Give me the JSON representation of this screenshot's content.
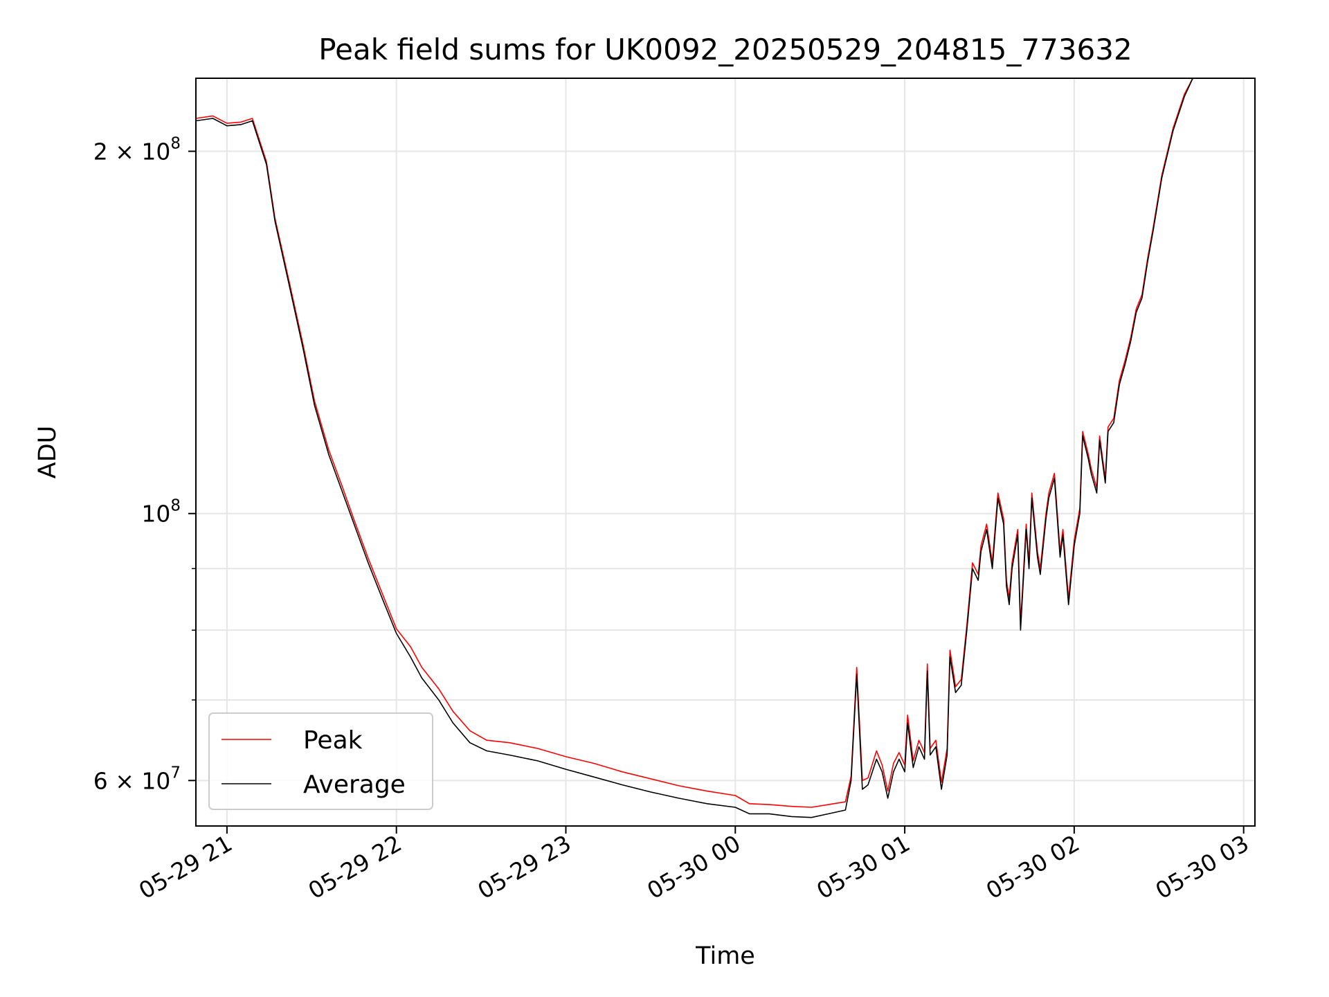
{
  "chart_data": {
    "type": "line",
    "title": "Peak field sums for UK0092_20250529_204815_773632",
    "xlabel": "Time",
    "ylabel": "ADU",
    "x_axis": {
      "kind": "datetime",
      "range": [
        "2025-05-29 20:49",
        "2025-05-30 03:04"
      ],
      "ticks": [
        "2025-05-29 21:00",
        "2025-05-29 22:00",
        "2025-05-29 23:00",
        "2025-05-30 00:00",
        "2025-05-30 01:00",
        "2025-05-30 02:00",
        "2025-05-30 03:00"
      ],
      "tick_labels": [
        "05-29 21",
        "05-29 22",
        "05-29 23",
        "05-30 00",
        "05-30 01",
        "05-30 02",
        "05-30 03"
      ]
    },
    "y_axis": {
      "scale": "log",
      "range": [
        55000000,
        230000000
      ],
      "major_ticks": [
        {
          "value": 60000000,
          "mantissa": "6",
          "exponent": "7"
        },
        {
          "value": 100000000,
          "mantissa": "",
          "exponent": "8"
        },
        {
          "value": 200000000,
          "mantissa": "2",
          "exponent": "8"
        }
      ],
      "minor_ticks": [
        70000000,
        80000000,
        90000000
      ]
    },
    "grid": true,
    "legend": {
      "position": "lower-left",
      "entries": [
        "Peak",
        "Average"
      ]
    },
    "series": [
      {
        "name": "Average",
        "color": "#000000",
        "points": [
          [
            "2025-05-29 20:49",
            212000000
          ],
          [
            "2025-05-29 20:55",
            213000000
          ],
          [
            "2025-05-29 21:00",
            210000000
          ],
          [
            "2025-05-29 21:05",
            210500000
          ],
          [
            "2025-05-29 21:09",
            212000000
          ],
          [
            "2025-05-29 21:14",
            195000000
          ],
          [
            "2025-05-29 21:17",
            175000000
          ],
          [
            "2025-05-29 21:22",
            155000000
          ],
          [
            "2025-05-29 21:27",
            137000000
          ],
          [
            "2025-05-29 21:31",
            123000000
          ],
          [
            "2025-05-29 21:36",
            112000000
          ],
          [
            "2025-05-29 21:41",
            104000000
          ],
          [
            "2025-05-29 21:45",
            98000000
          ],
          [
            "2025-05-29 21:50",
            91000000
          ],
          [
            "2025-05-29 21:55",
            85000000
          ],
          [
            "2025-05-29 22:00",
            79500000
          ],
          [
            "2025-05-29 22:05",
            76000000
          ],
          [
            "2025-05-29 22:09",
            73000000
          ],
          [
            "2025-05-29 22:15",
            70000000
          ],
          [
            "2025-05-29 22:20",
            67000000
          ],
          [
            "2025-05-29 22:26",
            64500000
          ],
          [
            "2025-05-29 22:32",
            63500000
          ],
          [
            "2025-05-29 22:40",
            63000000
          ],
          [
            "2025-05-29 22:50",
            62300000
          ],
          [
            "2025-05-29 23:00",
            61300000
          ],
          [
            "2025-05-29 23:10",
            60400000
          ],
          [
            "2025-05-29 23:20",
            59500000
          ],
          [
            "2025-05-29 23:30",
            58700000
          ],
          [
            "2025-05-29 23:40",
            58000000
          ],
          [
            "2025-05-29 23:50",
            57400000
          ],
          [
            "2025-05-30 00:00",
            57000000
          ],
          [
            "2025-05-30 00:05",
            56300000
          ],
          [
            "2025-05-30 00:12",
            56300000
          ],
          [
            "2025-05-30 00:20",
            56000000
          ],
          [
            "2025-05-30 00:27",
            55900000
          ],
          [
            "2025-05-30 00:33",
            56300000
          ],
          [
            "2025-05-30 00:39",
            56700000
          ],
          [
            "2025-05-30 00:41",
            60000000
          ],
          [
            "2025-05-30 00:43",
            73500000
          ],
          [
            "2025-05-30 00:45",
            59000000
          ],
          [
            "2025-05-30 00:47",
            59500000
          ],
          [
            "2025-05-30 00:50",
            62500000
          ],
          [
            "2025-05-30 00:52",
            61000000
          ],
          [
            "2025-05-30 00:54",
            58000000
          ],
          [
            "2025-05-30 00:56",
            61000000
          ],
          [
            "2025-05-30 00:58",
            62500000
          ],
          [
            "2025-05-30 01:00",
            61000000
          ],
          [
            "2025-05-30 01:01",
            67000000
          ],
          [
            "2025-05-30 01:03",
            61500000
          ],
          [
            "2025-05-30 01:05",
            64000000
          ],
          [
            "2025-05-30 01:07",
            62500000
          ],
          [
            "2025-05-30 01:08",
            74000000
          ],
          [
            "2025-05-30 01:09",
            63000000
          ],
          [
            "2025-05-30 01:11",
            64000000
          ],
          [
            "2025-05-30 01:13",
            59000000
          ],
          [
            "2025-05-30 01:15",
            63000000
          ],
          [
            "2025-05-30 01:16",
            76000000
          ],
          [
            "2025-05-30 01:18",
            71000000
          ],
          [
            "2025-05-30 01:20",
            72000000
          ],
          [
            "2025-05-30 01:22",
            80000000
          ],
          [
            "2025-05-30 01:24",
            90000000
          ],
          [
            "2025-05-30 01:26",
            88000000
          ],
          [
            "2025-05-30 01:27",
            93000000
          ],
          [
            "2025-05-30 01:29",
            97000000
          ],
          [
            "2025-05-30 01:31",
            90000000
          ],
          [
            "2025-05-30 01:33",
            103000000
          ],
          [
            "2025-05-30 01:35",
            98000000
          ],
          [
            "2025-05-30 01:36",
            87000000
          ],
          [
            "2025-05-30 01:37",
            84000000
          ],
          [
            "2025-05-30 01:38",
            90000000
          ],
          [
            "2025-05-30 01:40",
            96000000
          ],
          [
            "2025-05-30 01:41",
            80000000
          ],
          [
            "2025-05-30 01:43",
            97000000
          ],
          [
            "2025-05-30 01:44",
            90000000
          ],
          [
            "2025-05-30 01:45",
            103000000
          ],
          [
            "2025-05-30 01:47",
            92000000
          ],
          [
            "2025-05-30 01:48",
            89000000
          ],
          [
            "2025-05-30 01:50",
            99000000
          ],
          [
            "2025-05-30 01:51",
            103000000
          ],
          [
            "2025-05-30 01:53",
            107000000
          ],
          [
            "2025-05-30 01:55",
            92000000
          ],
          [
            "2025-05-30 01:56",
            96000000
          ],
          [
            "2025-05-30 01:58",
            84000000
          ],
          [
            "2025-05-30 02:00",
            94000000
          ],
          [
            "2025-05-30 02:02",
            100000000
          ],
          [
            "2025-05-30 02:03",
            116000000
          ],
          [
            "2025-05-30 02:05",
            111000000
          ],
          [
            "2025-05-30 02:06",
            108000000
          ],
          [
            "2025-05-30 02:08",
            104000000
          ],
          [
            "2025-05-30 02:09",
            115000000
          ],
          [
            "2025-05-30 02:11",
            106000000
          ],
          [
            "2025-05-30 02:12",
            117000000
          ],
          [
            "2025-05-30 02:14",
            119000000
          ],
          [
            "2025-05-30 02:16",
            128000000
          ],
          [
            "2025-05-30 02:18",
            133000000
          ],
          [
            "2025-05-30 02:20",
            139000000
          ],
          [
            "2025-05-30 02:22",
            147000000
          ],
          [
            "2025-05-30 02:24",
            151000000
          ],
          [
            "2025-05-30 02:26",
            162000000
          ],
          [
            "2025-05-30 02:28",
            172000000
          ],
          [
            "2025-05-30 02:31",
            190000000
          ],
          [
            "2025-05-30 02:35",
            208000000
          ],
          [
            "2025-05-30 02:39",
            222000000
          ],
          [
            "2025-05-30 02:42",
            230000000
          ],
          [
            "2025-05-30 02:49",
            230000000
          ]
        ]
      },
      {
        "name": "Peak",
        "color": "#ff0000",
        "points": [
          [
            "2025-05-29 20:49",
            213000000
          ],
          [
            "2025-05-29 20:55",
            214000000
          ],
          [
            "2025-05-29 21:00",
            211000000
          ],
          [
            "2025-05-29 21:05",
            211500000
          ],
          [
            "2025-05-29 21:09",
            213000000
          ],
          [
            "2025-05-29 21:14",
            196000000
          ],
          [
            "2025-05-29 21:17",
            176000000
          ],
          [
            "2025-05-29 21:22",
            156000000
          ],
          [
            "2025-05-29 21:27",
            138000000
          ],
          [
            "2025-05-29 21:31",
            124000000
          ],
          [
            "2025-05-29 21:36",
            113000000
          ],
          [
            "2025-05-29 21:41",
            105000000
          ],
          [
            "2025-05-29 21:45",
            98800000
          ],
          [
            "2025-05-29 21:50",
            91800000
          ],
          [
            "2025-05-29 21:55",
            85800000
          ],
          [
            "2025-05-29 22:00",
            80200000
          ],
          [
            "2025-05-29 22:05",
            77500000
          ],
          [
            "2025-05-29 22:09",
            74500000
          ],
          [
            "2025-05-29 22:15",
            71500000
          ],
          [
            "2025-05-29 22:20",
            68500000
          ],
          [
            "2025-05-29 22:26",
            66000000
          ],
          [
            "2025-05-29 22:32",
            64800000
          ],
          [
            "2025-05-29 22:40",
            64500000
          ],
          [
            "2025-05-29 22:50",
            63800000
          ],
          [
            "2025-05-29 23:00",
            62800000
          ],
          [
            "2025-05-29 23:10",
            62000000
          ],
          [
            "2025-05-29 23:20",
            61000000
          ],
          [
            "2025-05-29 23:30",
            60200000
          ],
          [
            "2025-05-29 23:40",
            59400000
          ],
          [
            "2025-05-29 23:50",
            58800000
          ],
          [
            "2025-05-30 00:00",
            58300000
          ],
          [
            "2025-05-30 00:05",
            57400000
          ],
          [
            "2025-05-30 00:12",
            57300000
          ],
          [
            "2025-05-30 00:20",
            57100000
          ],
          [
            "2025-05-30 00:27",
            57000000
          ],
          [
            "2025-05-30 00:33",
            57300000
          ],
          [
            "2025-05-30 00:39",
            57600000
          ],
          [
            "2025-05-30 00:41",
            60500000
          ],
          [
            "2025-05-30 00:43",
            74500000
          ],
          [
            "2025-05-30 00:45",
            60000000
          ],
          [
            "2025-05-30 00:47",
            60300000
          ],
          [
            "2025-05-30 00:50",
            63500000
          ],
          [
            "2025-05-30 00:52",
            61800000
          ],
          [
            "2025-05-30 00:54",
            58800000
          ],
          [
            "2025-05-30 00:56",
            62000000
          ],
          [
            "2025-05-30 00:58",
            63300000
          ],
          [
            "2025-05-30 01:00",
            61800000
          ],
          [
            "2025-05-30 01:01",
            68000000
          ],
          [
            "2025-05-30 01:03",
            62300000
          ],
          [
            "2025-05-30 01:05",
            64800000
          ],
          [
            "2025-05-30 01:07",
            63300000
          ],
          [
            "2025-05-30 01:08",
            75000000
          ],
          [
            "2025-05-30 01:09",
            63800000
          ],
          [
            "2025-05-30 01:11",
            64800000
          ],
          [
            "2025-05-30 01:13",
            59800000
          ],
          [
            "2025-05-30 01:15",
            63800000
          ],
          [
            "2025-05-30 01:16",
            77000000
          ],
          [
            "2025-05-30 01:18",
            71800000
          ],
          [
            "2025-05-30 01:20",
            72800000
          ],
          [
            "2025-05-30 01:22",
            80800000
          ],
          [
            "2025-05-30 01:24",
            91000000
          ],
          [
            "2025-05-30 01:26",
            89000000
          ],
          [
            "2025-05-30 01:27",
            94000000
          ],
          [
            "2025-05-30 01:29",
            98000000
          ],
          [
            "2025-05-30 01:31",
            91000000
          ],
          [
            "2025-05-30 01:33",
            104000000
          ],
          [
            "2025-05-30 01:35",
            99000000
          ],
          [
            "2025-05-30 01:36",
            88000000
          ],
          [
            "2025-05-30 01:37",
            85000000
          ],
          [
            "2025-05-30 01:38",
            91000000
          ],
          [
            "2025-05-30 01:40",
            97000000
          ],
          [
            "2025-05-30 01:41",
            81000000
          ],
          [
            "2025-05-30 01:43",
            98000000
          ],
          [
            "2025-05-30 01:44",
            91000000
          ],
          [
            "2025-05-30 01:45",
            104000000
          ],
          [
            "2025-05-30 01:47",
            93000000
          ],
          [
            "2025-05-30 01:48",
            90000000
          ],
          [
            "2025-05-30 01:50",
            100000000
          ],
          [
            "2025-05-30 01:51",
            104000000
          ],
          [
            "2025-05-30 01:53",
            108000000
          ],
          [
            "2025-05-30 01:55",
            93000000
          ],
          [
            "2025-05-30 01:56",
            97000000
          ],
          [
            "2025-05-30 01:58",
            85000000
          ],
          [
            "2025-05-30 02:00",
            95000000
          ],
          [
            "2025-05-30 02:02",
            101000000
          ],
          [
            "2025-05-30 02:03",
            117000000
          ],
          [
            "2025-05-30 02:05",
            112000000
          ],
          [
            "2025-05-30 02:06",
            109000000
          ],
          [
            "2025-05-30 02:08",
            105000000
          ],
          [
            "2025-05-30 02:09",
            116000000
          ],
          [
            "2025-05-30 02:11",
            107000000
          ],
          [
            "2025-05-30 02:12",
            118000000
          ],
          [
            "2025-05-30 02:14",
            120000000
          ],
          [
            "2025-05-30 02:16",
            129000000
          ],
          [
            "2025-05-30 02:18",
            134000000
          ],
          [
            "2025-05-30 02:20",
            140000000
          ],
          [
            "2025-05-30 02:22",
            148000000
          ],
          [
            "2025-05-30 02:24",
            152000000
          ],
          [
            "2025-05-30 02:26",
            163000000
          ],
          [
            "2025-05-30 02:28",
            173000000
          ],
          [
            "2025-05-30 02:31",
            191000000
          ],
          [
            "2025-05-30 02:35",
            209000000
          ],
          [
            "2025-05-30 02:39",
            223000000
          ],
          [
            "2025-05-30 02:42",
            230000000
          ],
          [
            "2025-05-30 02:49",
            230000000
          ]
        ]
      }
    ]
  }
}
